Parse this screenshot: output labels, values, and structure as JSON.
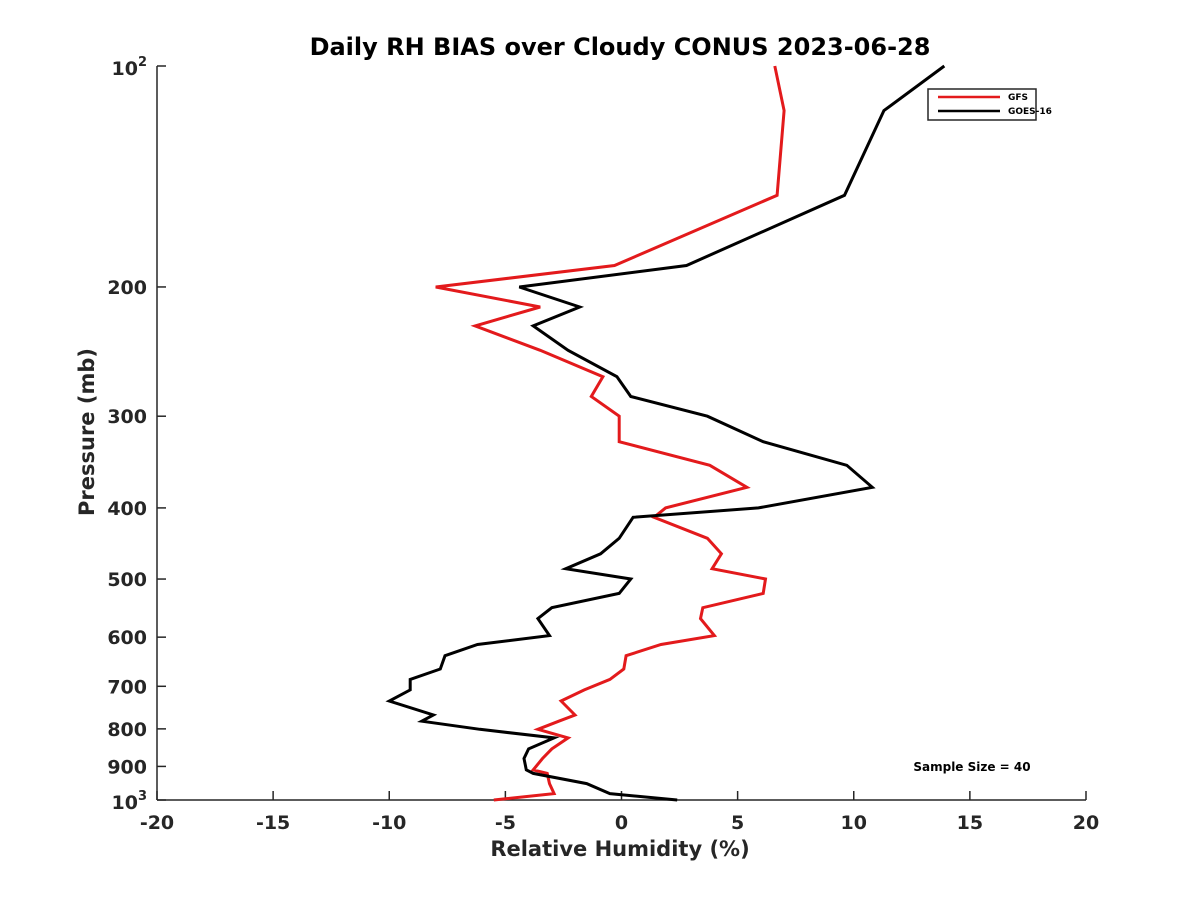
{
  "chart_data": {
    "type": "line",
    "title": "Daily RH BIAS over Cloudy CONUS 2023-06-28",
    "xlabel": "Relative Humidity (%)",
    "ylabel": "Pressure (mb)",
    "xlim": [
      -20,
      20
    ],
    "ylim": [
      1000,
      100
    ],
    "y_scale": "log",
    "x_ticks": [
      "-20",
      "-15",
      "-10",
      "-5",
      "0",
      "5",
      "10",
      "15",
      "20"
    ],
    "y_ticks": [
      {
        "value": 100,
        "base": "10",
        "exp": "2"
      },
      {
        "value": 200,
        "label": "200"
      },
      {
        "value": 300,
        "label": "300"
      },
      {
        "value": 400,
        "label": "400"
      },
      {
        "value": 500,
        "label": "500"
      },
      {
        "value": 600,
        "label": "600"
      },
      {
        "value": 700,
        "label": "700"
      },
      {
        "value": 800,
        "label": "800"
      },
      {
        "value": 900,
        "label": "900"
      },
      {
        "value": 1000,
        "base": "10",
        "exp": "3"
      }
    ],
    "grid": false,
    "legend_position": "top-right",
    "annotation": "Sample Size = 40",
    "series": [
      {
        "name": "GFS",
        "color": "#e31a1c",
        "points": [
          [
            6.6,
            100
          ],
          [
            7.0,
            115
          ],
          [
            6.7,
            150
          ],
          [
            -0.3,
            187
          ],
          [
            -8.0,
            200
          ],
          [
            -3.5,
            213
          ],
          [
            -6.3,
            226
          ],
          [
            -3.5,
            244
          ],
          [
            -0.8,
            265
          ],
          [
            -1.3,
            282
          ],
          [
            -0.1,
            300
          ],
          [
            -0.1,
            325
          ],
          [
            3.8,
            350
          ],
          [
            5.4,
            375
          ],
          [
            1.9,
            400
          ],
          [
            1.4,
            412
          ],
          [
            3.7,
            440
          ],
          [
            4.3,
            462
          ],
          [
            3.9,
            484
          ],
          [
            6.2,
            500
          ],
          [
            6.1,
            523
          ],
          [
            3.5,
            547
          ],
          [
            3.4,
            566
          ],
          [
            4.0,
            597
          ],
          [
            1.7,
            614
          ],
          [
            0.2,
            636
          ],
          [
            0.1,
            663
          ],
          [
            -0.5,
            685
          ],
          [
            -1.6,
            708
          ],
          [
            -2.6,
            733
          ],
          [
            -2.0,
            766
          ],
          [
            -2.7,
            781
          ],
          [
            -3.6,
            801
          ],
          [
            -2.3,
            823
          ],
          [
            -3.0,
            852
          ],
          [
            -3.4,
            878
          ],
          [
            -3.8,
            910
          ],
          [
            -3.2,
            920
          ],
          [
            -3.1,
            950
          ],
          [
            -2.9,
            980
          ],
          [
            -5.5,
            1000
          ]
        ]
      },
      {
        "name": "GOES-16",
        "color": "#000000",
        "points": [
          [
            13.9,
            100
          ],
          [
            11.3,
            115
          ],
          [
            9.6,
            150
          ],
          [
            2.8,
            187
          ],
          [
            -4.4,
            200
          ],
          [
            -1.8,
            213
          ],
          [
            -3.8,
            226
          ],
          [
            -2.3,
            244
          ],
          [
            -0.2,
            265
          ],
          [
            0.4,
            282
          ],
          [
            3.7,
            300
          ],
          [
            6.1,
            325
          ],
          [
            9.7,
            350
          ],
          [
            10.8,
            375
          ],
          [
            5.9,
            400
          ],
          [
            0.5,
            412
          ],
          [
            -0.1,
            440
          ],
          [
            -0.9,
            462
          ],
          [
            -2.4,
            484
          ],
          [
            0.4,
            500
          ],
          [
            -0.1,
            523
          ],
          [
            -3.0,
            547
          ],
          [
            -3.6,
            566
          ],
          [
            -3.1,
            597
          ],
          [
            -6.2,
            614
          ],
          [
            -7.6,
            636
          ],
          [
            -7.8,
            663
          ],
          [
            -9.1,
            685
          ],
          [
            -9.1,
            708
          ],
          [
            -10.0,
            733
          ],
          [
            -8.1,
            766
          ],
          [
            -8.6,
            781
          ],
          [
            -6.1,
            801
          ],
          [
            -2.9,
            823
          ],
          [
            -4.0,
            852
          ],
          [
            -4.2,
            878
          ],
          [
            -4.1,
            910
          ],
          [
            -3.8,
            920
          ],
          [
            -1.5,
            950
          ],
          [
            -0.5,
            980
          ],
          [
            2.4,
            1000
          ]
        ]
      }
    ]
  }
}
